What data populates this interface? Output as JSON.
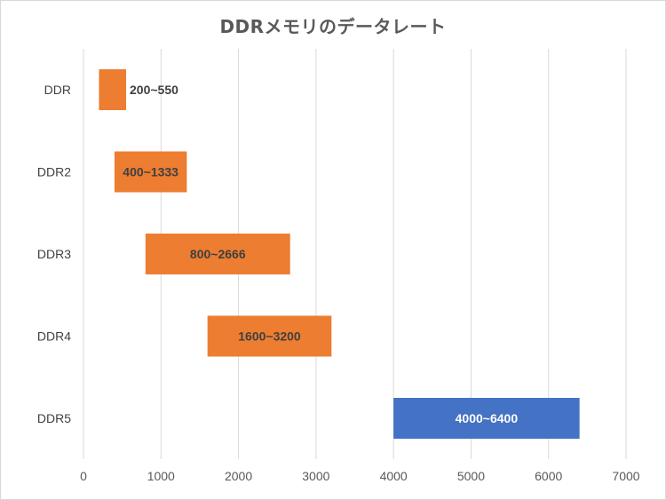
{
  "chart_data": {
    "type": "bar",
    "orientation": "horizontal",
    "subtype": "range",
    "title": "DDRメモリのデータレート",
    "xlabel": "",
    "ylabel": "",
    "xlim": [
      0,
      7000
    ],
    "x_ticks": [
      0,
      1000,
      2000,
      3000,
      4000,
      5000,
      6000,
      7000
    ],
    "grid": true,
    "legend": "none",
    "categories": [
      "DDR",
      "DDR2",
      "DDR3",
      "DDR4",
      "DDR5"
    ],
    "bars": [
      {
        "category": "DDR",
        "start": 200,
        "end": 550,
        "label": "200~550",
        "color": "#ED7D31",
        "label_color": "#404040",
        "label_position": "outside"
      },
      {
        "category": "DDR2",
        "start": 400,
        "end": 1333,
        "label": "400~1333",
        "color": "#ED7D31",
        "label_color": "#404040",
        "label_position": "inside"
      },
      {
        "category": "DDR3",
        "start": 800,
        "end": 2666,
        "label": "800~2666",
        "color": "#ED7D31",
        "label_color": "#404040",
        "label_position": "inside"
      },
      {
        "category": "DDR4",
        "start": 1600,
        "end": 3200,
        "label": "1600~3200",
        "color": "#ED7D31",
        "label_color": "#404040",
        "label_position": "inside"
      },
      {
        "category": "DDR5",
        "start": 4000,
        "end": 6400,
        "label": "4000~6400",
        "color": "#4472C4",
        "label_color": "#ffffff",
        "label_position": "inside"
      }
    ]
  }
}
